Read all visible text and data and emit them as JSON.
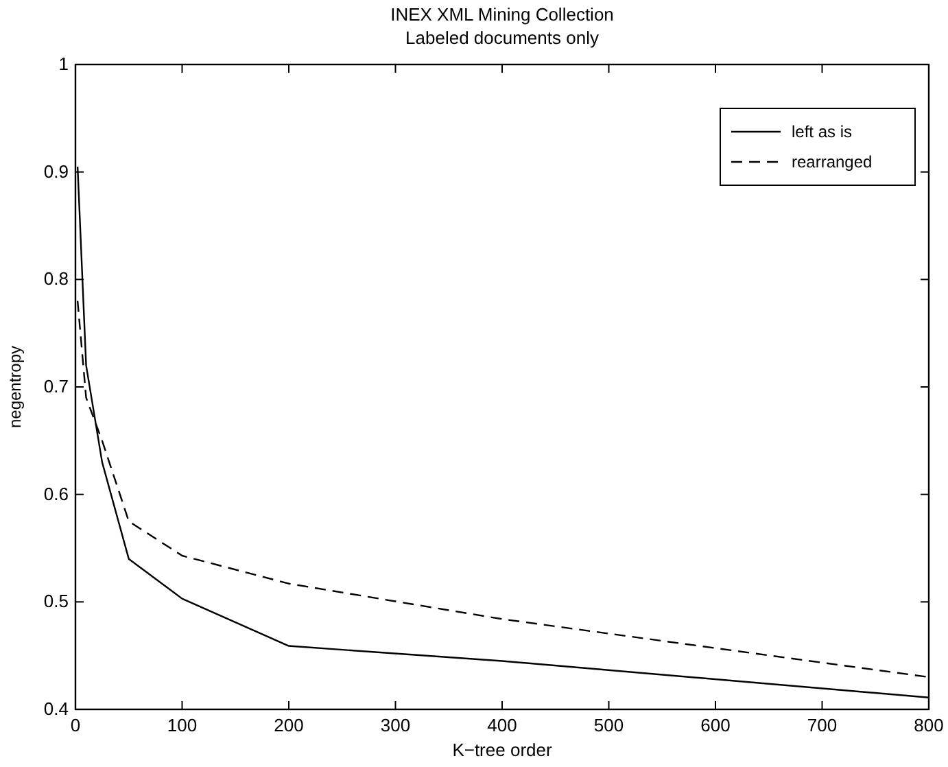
{
  "chart_data": {
    "type": "line",
    "title": "INEX XML Mining Collection",
    "subtitle": "Labeled documents only",
    "xlabel": "K−tree order",
    "ylabel": "negentropy",
    "x": [
      2,
      10,
      25,
      50,
      100,
      200,
      400,
      800
    ],
    "series": [
      {
        "name": "left as is",
        "color": "#000000",
        "line_style": "solid",
        "values": [
          0.905,
          0.72,
          0.63,
          0.54,
          0.503,
          0.459,
          0.445,
          0.411
        ]
      },
      {
        "name": "rearranged",
        "color": "#000000",
        "line_style": "dashed",
        "values": [
          0.78,
          0.69,
          0.65,
          0.575,
          0.543,
          0.517,
          0.484,
          0.43
        ]
      }
    ],
    "xlim": [
      0,
      800
    ],
    "xticks": [
      0,
      100,
      200,
      300,
      400,
      500,
      600,
      700,
      800
    ],
    "ylim": [
      0.4,
      1
    ],
    "yticks": [
      0.4,
      0.5,
      0.6,
      0.7,
      0.8,
      0.9,
      1
    ],
    "legend": "top right",
    "grid": false,
    "marker": "none"
  }
}
